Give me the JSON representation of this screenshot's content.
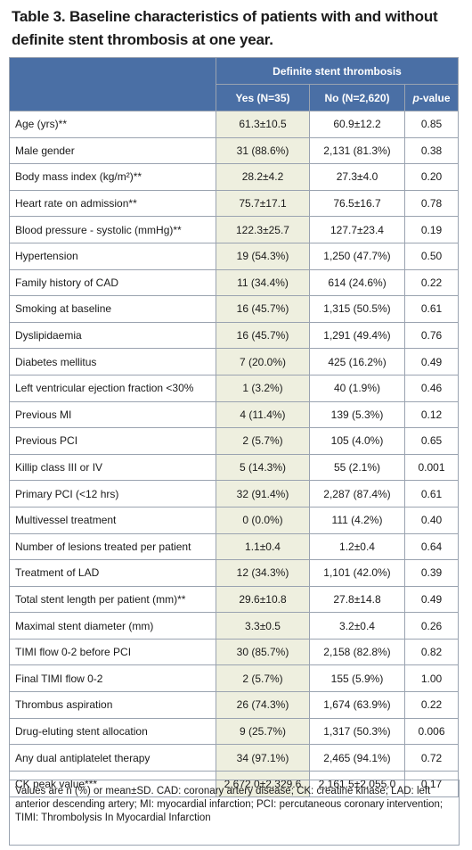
{
  "title": "Table 3. Baseline characteristics of patients with and without definite stent thrombosis at one year.",
  "header": {
    "group": "Definite stent thrombosis",
    "col_yes": "Yes (N=35)",
    "col_no": "No (N=2,620)",
    "col_p_italic": "p",
    "col_p_rest": "-value"
  },
  "rows": [
    {
      "label": "Age (yrs)**",
      "yes": "61.3±10.5",
      "no": "60.9±12.2",
      "p": "0.85"
    },
    {
      "label": "Male gender",
      "yes": "31 (88.6%)",
      "no": "2,131 (81.3%)",
      "p": "0.38"
    },
    {
      "label": "Body mass index (kg/m²)**",
      "yes": "28.2±4.2",
      "no": "27.3±4.0",
      "p": "0.20"
    },
    {
      "label": "Heart rate on admission**",
      "yes": "75.7±17.1",
      "no": "76.5±16.7",
      "p": "0.78"
    },
    {
      "label": "Blood pressure - systolic (mmHg)**",
      "yes": "122.3±25.7",
      "no": "127.7±23.4",
      "p": "0.19"
    },
    {
      "label": "Hypertension",
      "yes": "19 (54.3%)",
      "no": "1,250 (47.7%)",
      "p": "0.50"
    },
    {
      "label": "Family history of CAD",
      "yes": "11 (34.4%)",
      "no": "614 (24.6%)",
      "p": "0.22"
    },
    {
      "label": "Smoking at baseline",
      "yes": "16 (45.7%)",
      "no": "1,315 (50.5%)",
      "p": "0.61"
    },
    {
      "label": "Dyslipidaemia",
      "yes": "16 (45.7%)",
      "no": "1,291 (49.4%)",
      "p": "0.76"
    },
    {
      "label": "Diabetes mellitus",
      "yes": "7 (20.0%)",
      "no": "425 (16.2%)",
      "p": "0.49"
    },
    {
      "label": "Left ventricular ejection fraction <30%",
      "yes": "1 (3.2%)",
      "no": "40 (1.9%)",
      "p": "0.46"
    },
    {
      "label": "Previous MI",
      "yes": "4 (11.4%)",
      "no": "139 (5.3%)",
      "p": "0.12"
    },
    {
      "label": "Previous PCI",
      "yes": "2 (5.7%)",
      "no": "105 (4.0%)",
      "p": "0.65"
    },
    {
      "label": "Killip class III or IV",
      "yes": "5 (14.3%)",
      "no": "55 (2.1%)",
      "p": "0.001"
    },
    {
      "label": "Primary PCI (<12 hrs)",
      "yes": "32 (91.4%)",
      "no": "2,287 (87.4%)",
      "p": "0.61"
    },
    {
      "label": "Multivessel treatment",
      "yes": "0 (0.0%)",
      "no": "111 (4.2%)",
      "p": "0.40"
    },
    {
      "label": "Number of lesions treated per patient",
      "yes": "1.1±0.4",
      "no": "1.2±0.4",
      "p": "0.64"
    },
    {
      "label": "Treatment of LAD",
      "yes": "12 (34.3%)",
      "no": "1,101 (42.0%)",
      "p": "0.39"
    },
    {
      "label": "Total stent length per patient (mm)**",
      "yes": "29.6±10.8",
      "no": "27.8±14.8",
      "p": "0.49"
    },
    {
      "label": "Maximal stent diameter (mm)",
      "yes": "3.3±0.5",
      "no": "3.2±0.4",
      "p": "0.26"
    },
    {
      "label": "TIMI flow 0-2 before PCI",
      "yes": "30 (85.7%)",
      "no": "2,158 (82.8%)",
      "p": "0.82"
    },
    {
      "label": "Final TIMI flow 0-2",
      "yes": "2 (5.7%)",
      "no": "155 (5.9%)",
      "p": "1.00"
    },
    {
      "label": "Thrombus aspiration",
      "yes": "26 (74.3%)",
      "no": "1,674 (63.9%)",
      "p": "0.22"
    },
    {
      "label": "Drug-eluting stent allocation",
      "yes": "9 (25.7%)",
      "no": "1,317 (50.3%)",
      "p": "0.006"
    },
    {
      "label": "Any dual antiplatelet therapy",
      "yes": "34 (97.1%)",
      "no": "2,465 (94.1%)",
      "p": "0.72"
    },
    {
      "label": "CK peak value***",
      "yes": "2,672.0±2,329.6",
      "no": "2,161.5±2,055.0",
      "p": "0.17"
    }
  ],
  "footnote": "Values are n (%) or mean±SD. CAD: coronary artery disease; CK: creatine kinase; LAD: left anterior descending artery; MI: myocardial infarction; PCI: percutaneous coronary intervention; TIMI: Thrombolysis In Myocardial Infarction"
}
